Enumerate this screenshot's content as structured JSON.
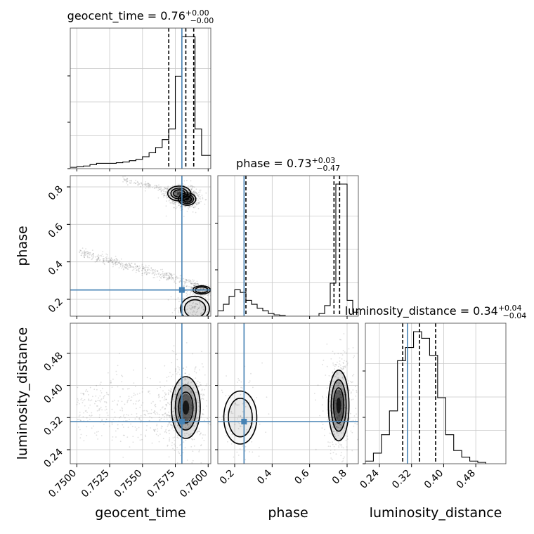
{
  "chart_data": {
    "type": "corner",
    "parameters": [
      "geocent_time",
      "phase",
      "luminosity_distance"
    ],
    "ranges": {
      "geocent_time": [
        0.7495,
        0.7602
      ],
      "phase": [
        0.11,
        0.86
      ],
      "luminosity_distance": [
        0.205,
        0.555
      ]
    },
    "ticks": {
      "geocent_time": [
        0.75,
        0.7525,
        0.755,
        0.7575,
        0.76
      ],
      "phase": [
        0.2,
        0.4,
        0.6,
        0.8
      ],
      "luminosity_distance": [
        0.24,
        0.32,
        0.4,
        0.48
      ]
    },
    "tick_labels": {
      "geocent_time": [
        "0.7500",
        "0.7525",
        "0.7550",
        "0.7575",
        "0.7600"
      ],
      "phase": [
        "0.2",
        "0.4",
        "0.6",
        "0.8"
      ],
      "luminosity_distance": [
        "0.24",
        "0.32",
        "0.40",
        "0.48"
      ]
    },
    "truths": {
      "geocent_time": 0.758,
      "phase": 0.25,
      "luminosity_distance": 0.31
    },
    "quantiles": {
      "geocent_time": [
        0.757,
        0.7583,
        0.7589
      ],
      "phase": [
        0.26,
        0.73,
        0.76
      ],
      "luminosity_distance": [
        0.298,
        0.34,
        0.38
      ]
    },
    "titles": [
      {
        "param": "geocent_time",
        "label": "geocent_time = 0.76",
        "sup": "+0.00",
        "sub": "−0.00"
      },
      {
        "param": "phase",
        "label": "phase = 0.73",
        "sup": "+0.03",
        "sub": "−0.47"
      },
      {
        "param": "luminosity_distance",
        "label": "luminosity_distance = 0.34",
        "sup": "+0.04",
        "sub": "−0.04"
      }
    ],
    "histograms": {
      "geocent_time": {
        "edges": [
          0.7495,
          0.75,
          0.7505,
          0.751,
          0.7515,
          0.752,
          0.7525,
          0.753,
          0.7535,
          0.754,
          0.7545,
          0.755,
          0.7555,
          0.756,
          0.7565,
          0.757,
          0.7575,
          0.758,
          0.7585,
          0.759,
          0.7595,
          0.7602
        ],
        "counts": [
          0.01,
          0.015,
          0.02,
          0.03,
          0.04,
          0.04,
          0.04,
          0.045,
          0.05,
          0.06,
          0.07,
          0.09,
          0.12,
          0.16,
          0.22,
          0.3,
          0.7,
          1.0,
          1.0,
          0.3,
          0.1
        ]
      },
      "phase": {
        "edges": [
          0.11,
          0.14,
          0.17,
          0.2,
          0.23,
          0.26,
          0.29,
          0.32,
          0.35,
          0.38,
          0.41,
          0.44,
          0.47,
          0.5,
          0.53,
          0.56,
          0.59,
          0.62,
          0.65,
          0.68,
          0.71,
          0.74,
          0.77,
          0.8,
          0.83,
          0.86
        ],
        "counts": [
          0.04,
          0.09,
          0.15,
          0.2,
          0.18,
          0.12,
          0.09,
          0.06,
          0.04,
          0.02,
          0.01,
          0.005,
          0,
          0,
          0,
          0,
          0,
          0,
          0.02,
          0.08,
          0.25,
          1.0,
          1.0,
          0.12,
          0.03
        ]
      },
      "luminosity_distance": {
        "edges": [
          0.205,
          0.225,
          0.245,
          0.265,
          0.285,
          0.305,
          0.325,
          0.345,
          0.365,
          0.385,
          0.405,
          0.425,
          0.445,
          0.465,
          0.485,
          0.505
        ],
        "counts": [
          0.02,
          0.08,
          0.22,
          0.4,
          0.78,
          0.88,
          1.0,
          0.95,
          0.82,
          0.5,
          0.22,
          0.1,
          0.05,
          0.02,
          0.01
        ]
      }
    },
    "contour_density": {
      "phase_vs_geocent_time": [
        {
          "x": 0.7578,
          "y": 0.765,
          "sx": 0.0004,
          "sy": 0.018,
          "w": 0.6
        },
        {
          "x": 0.7584,
          "y": 0.735,
          "sx": 0.0003,
          "sy": 0.015,
          "w": 1.0
        },
        {
          "x": 0.759,
          "y": 0.15,
          "sx": 0.0005,
          "sy": 0.03,
          "w": 0.35
        },
        {
          "x": 0.7595,
          "y": 0.25,
          "sx": 0.0003,
          "sy": 0.01,
          "w": 0.4
        }
      ],
      "luminosity_distance_vs_geocent_time": [
        {
          "x": 0.7583,
          "y": 0.345,
          "sx": 0.0005,
          "sy": 0.035,
          "w": 1.0
        }
      ],
      "luminosity_distance_vs_phase": [
        {
          "x": 0.755,
          "y": 0.35,
          "sx": 0.025,
          "sy": 0.04,
          "w": 1.0
        },
        {
          "x": 0.23,
          "y": 0.32,
          "sx": 0.04,
          "sy": 0.03,
          "w": 0.22
        }
      ]
    },
    "grid": true,
    "colors": {
      "truth": "#4682b4",
      "contour": "#000000",
      "hist": "#000000",
      "grid": "#c8c8c8"
    }
  }
}
